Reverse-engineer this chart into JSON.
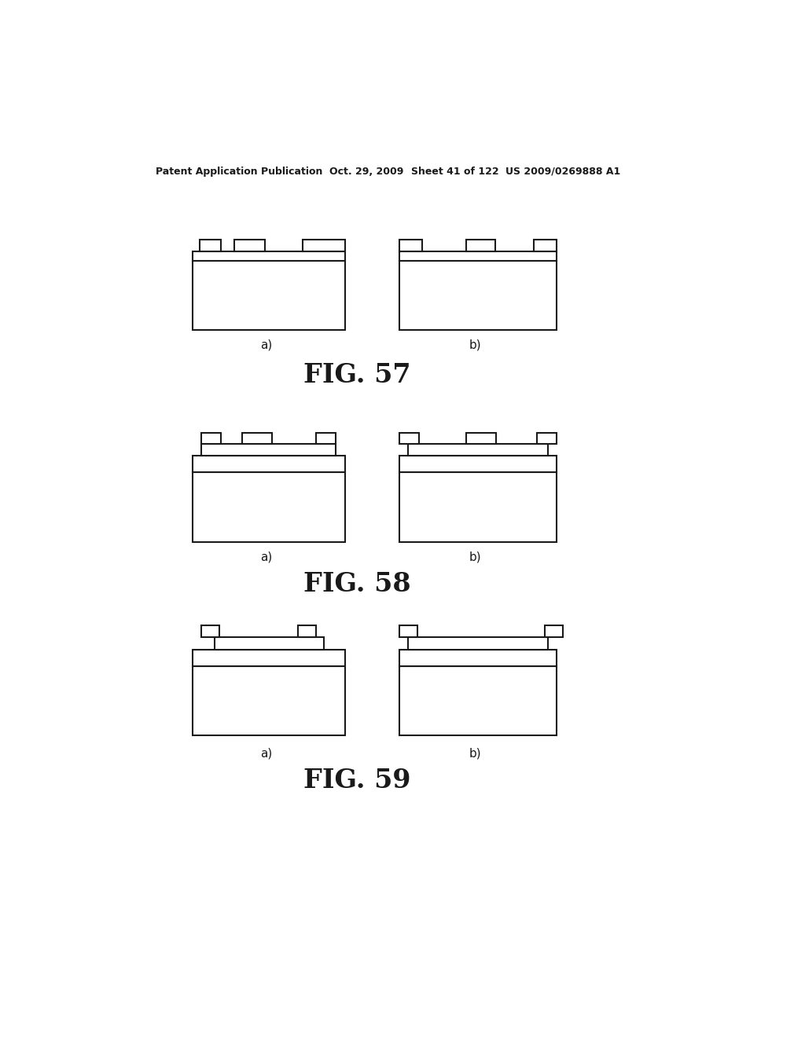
{
  "background_color": "#ffffff",
  "line_color": "#1a1a1a",
  "line_width": 1.5,
  "header_text": "Patent Application Publication",
  "header_date": "Oct. 29, 2009",
  "header_sheet": "Sheet 41 of 122",
  "header_patent": "US 2009/0269888 A1",
  "fig57_label": "FIG. 57",
  "fig58_label": "FIG. 58",
  "fig59_label": "FIG. 59",
  "label_a": "a)",
  "label_b": "b)"
}
